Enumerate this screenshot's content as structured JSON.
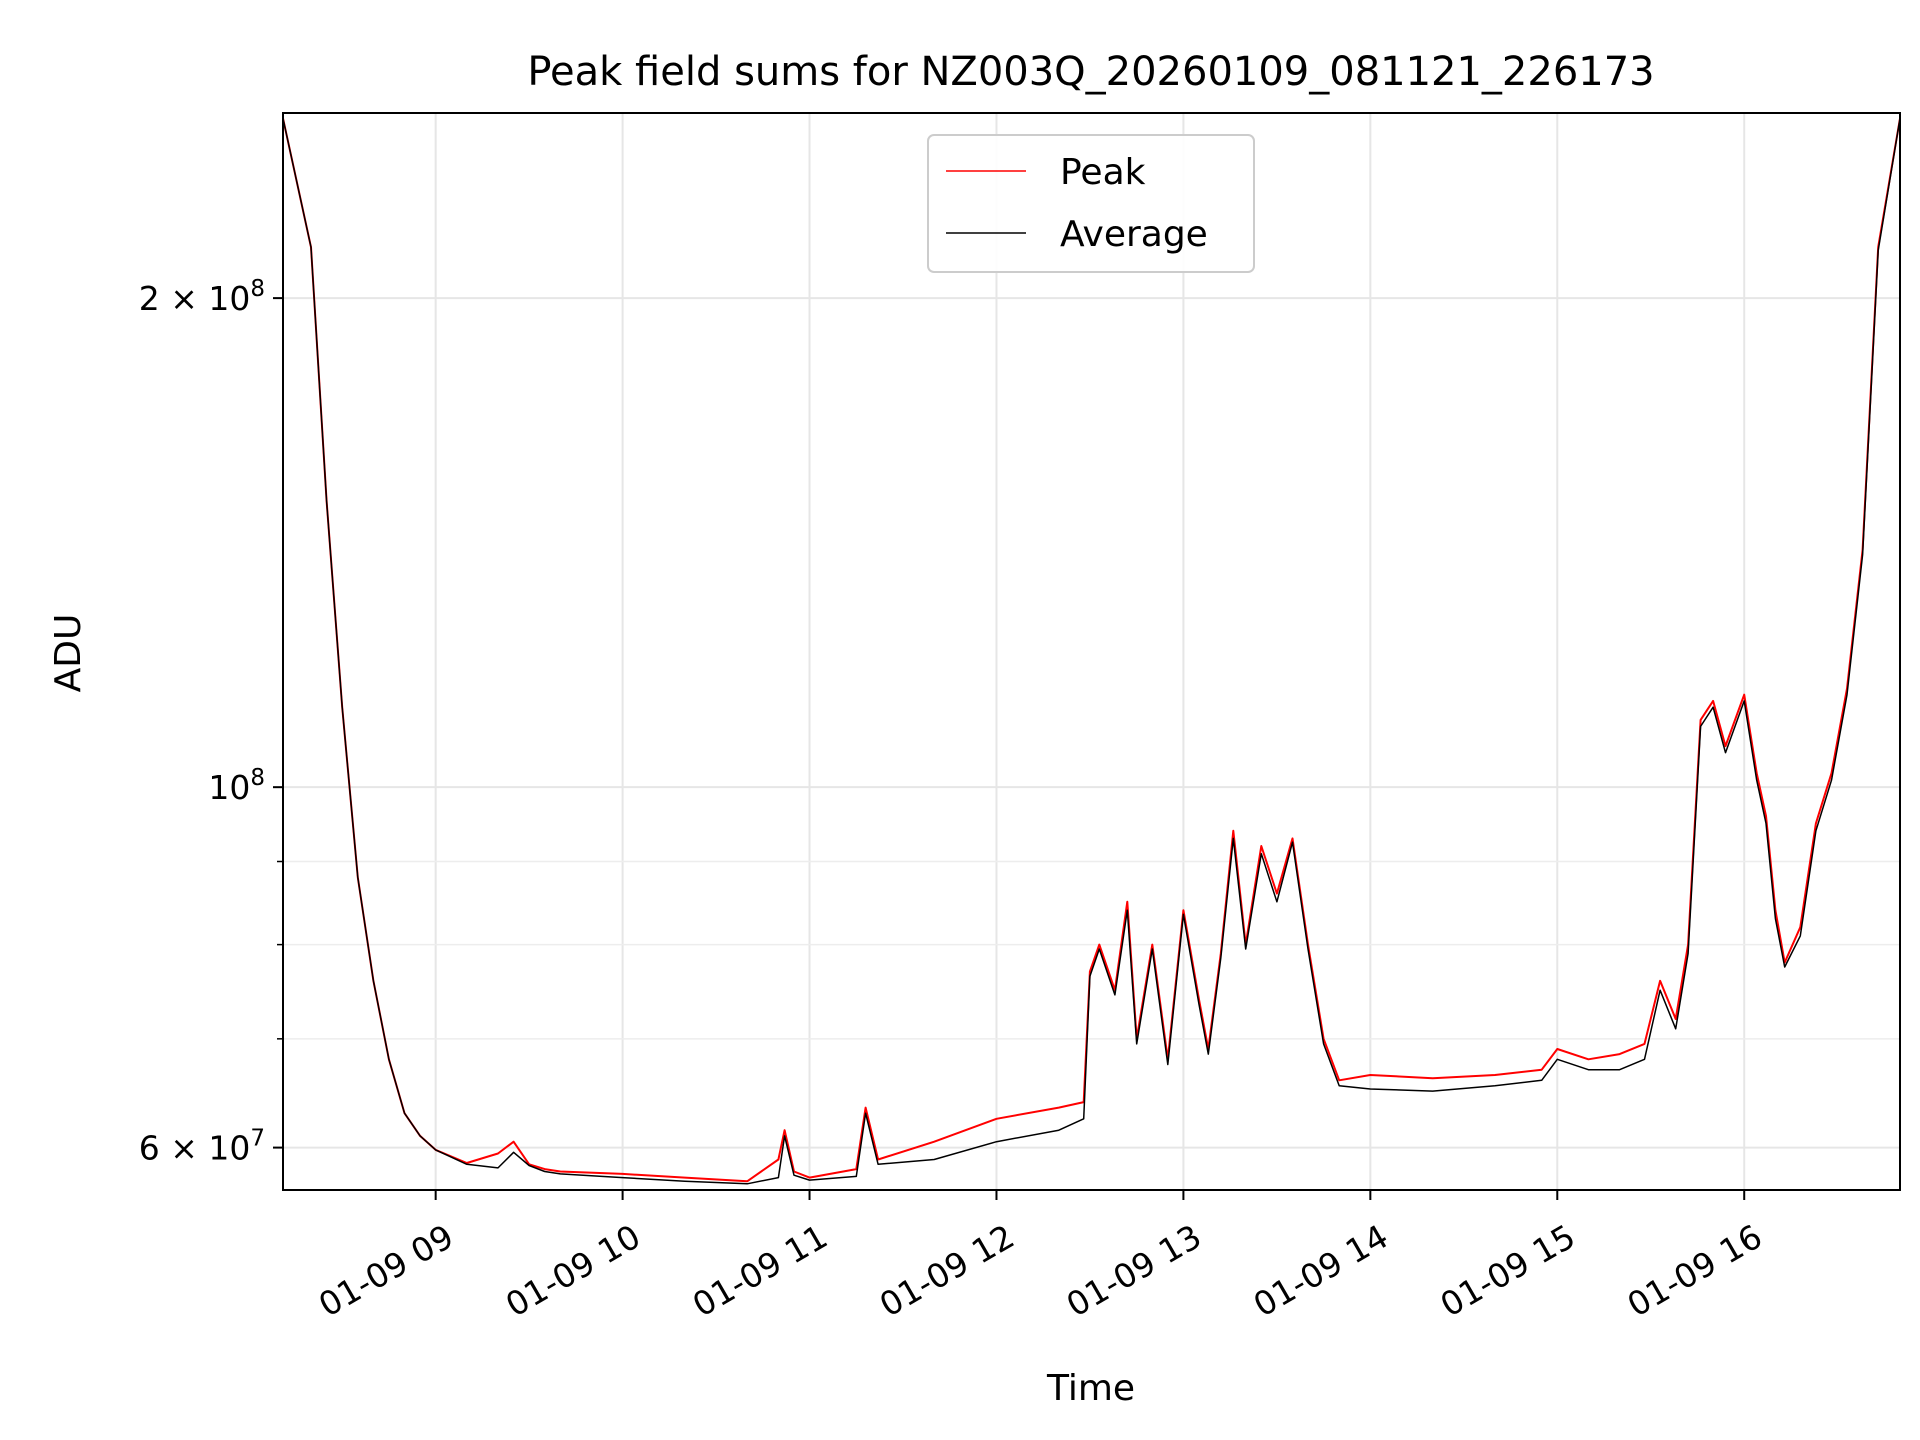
{
  "chart_data": {
    "type": "line",
    "title": "Peak field sums for NZ003Q_20260109_081121_226173",
    "xlabel": "Time",
    "ylabel": "ADU",
    "y_scale": "log",
    "xlim": [
      "2026-01-09 08:11",
      "2026-01-09 16:50"
    ],
    "ylim": [
      56500000,
      260000000
    ],
    "grid": true,
    "legend_position": "upper center",
    "x_ticks": [
      {
        "value": "2026-01-09 09:00",
        "label": "01-09 09"
      },
      {
        "value": "2026-01-09 10:00",
        "label": "01-09 10"
      },
      {
        "value": "2026-01-09 11:00",
        "label": "01-09 11"
      },
      {
        "value": "2026-01-09 12:00",
        "label": "01-09 12"
      },
      {
        "value": "2026-01-09 13:00",
        "label": "01-09 13"
      },
      {
        "value": "2026-01-09 14:00",
        "label": "01-09 14"
      },
      {
        "value": "2026-01-09 15:00",
        "label": "01-09 15"
      },
      {
        "value": "2026-01-09 16:00",
        "label": "01-09 16"
      }
    ],
    "y_major_ticks": [
      {
        "value": 60000000,
        "base": "6 × 10",
        "exp": "7"
      },
      {
        "value": 100000000,
        "base": "10",
        "exp": "8"
      },
      {
        "value": 200000000,
        "base": "2 × 10",
        "exp": "8"
      }
    ],
    "y_minor_ticks": [
      70000000,
      80000000,
      90000000
    ],
    "series": [
      {
        "name": "Peak",
        "color": "#ff0000",
        "x": [
          "2026-01-09 08:11",
          "2026-01-09 08:20",
          "2026-01-09 08:25",
          "2026-01-09 08:30",
          "2026-01-09 08:35",
          "2026-01-09 08:40",
          "2026-01-09 08:45",
          "2026-01-09 08:50",
          "2026-01-09 08:55",
          "2026-01-09 09:00",
          "2026-01-09 09:10",
          "2026-01-09 09:20",
          "2026-01-09 09:25",
          "2026-01-09 09:30",
          "2026-01-09 09:35",
          "2026-01-09 09:40",
          "2026-01-09 10:00",
          "2026-01-09 10:20",
          "2026-01-09 10:40",
          "2026-01-09 10:50",
          "2026-01-09 10:52",
          "2026-01-09 10:55",
          "2026-01-09 11:00",
          "2026-01-09 11:15",
          "2026-01-09 11:18",
          "2026-01-09 11:22",
          "2026-01-09 11:40",
          "2026-01-09 12:00",
          "2026-01-09 12:20",
          "2026-01-09 12:28",
          "2026-01-09 12:30",
          "2026-01-09 12:33",
          "2026-01-09 12:38",
          "2026-01-09 12:42",
          "2026-01-09 12:45",
          "2026-01-09 12:50",
          "2026-01-09 12:55",
          "2026-01-09 13:00",
          "2026-01-09 13:05",
          "2026-01-09 13:08",
          "2026-01-09 13:12",
          "2026-01-09 13:16",
          "2026-01-09 13:20",
          "2026-01-09 13:25",
          "2026-01-09 13:30",
          "2026-01-09 13:35",
          "2026-01-09 13:40",
          "2026-01-09 13:45",
          "2026-01-09 13:50",
          "2026-01-09 14:00",
          "2026-01-09 14:20",
          "2026-01-09 14:40",
          "2026-01-09 14:55",
          "2026-01-09 15:00",
          "2026-01-09 15:10",
          "2026-01-09 15:20",
          "2026-01-09 15:28",
          "2026-01-09 15:33",
          "2026-01-09 15:38",
          "2026-01-09 15:42",
          "2026-01-09 15:46",
          "2026-01-09 15:50",
          "2026-01-09 15:54",
          "2026-01-09 16:00",
          "2026-01-09 16:04",
          "2026-01-09 16:07",
          "2026-01-09 16:10",
          "2026-01-09 16:13",
          "2026-01-09 16:18",
          "2026-01-09 16:23",
          "2026-01-09 16:28",
          "2026-01-09 16:33",
          "2026-01-09 16:38",
          "2026-01-09 16:43",
          "2026-01-09 16:50"
        ],
        "y": [
          258000000,
          215000000,
          150000000,
          112000000,
          88000000,
          76000000,
          68000000,
          63000000,
          61000000,
          59800000,
          58700000,
          59500000,
          60500000,
          58600000,
          58200000,
          58000000,
          57800000,
          57500000,
          57200000,
          59000000,
          61500000,
          58000000,
          57500000,
          58200000,
          63500000,
          59000000,
          60500000,
          62500000,
          63500000,
          64000000,
          77000000,
          80000000,
          75000000,
          85000000,
          70000000,
          80000000,
          68000000,
          84000000,
          74000000,
          69000000,
          79000000,
          94000000,
          80000000,
          92000000,
          86000000,
          93000000,
          80000000,
          70000000,
          66000000,
          66500000,
          66200000,
          66500000,
          67000000,
          69000000,
          68000000,
          68500000,
          69500000,
          76000000,
          72000000,
          80000000,
          110000000,
          113000000,
          106000000,
          114000000,
          102000000,
          96000000,
          84000000,
          78000000,
          82000000,
          95000000,
          102000000,
          115000000,
          140000000,
          215000000,
          258000000
        ]
      },
      {
        "name": "Average",
        "color": "#000000",
        "x": [
          "2026-01-09 08:11",
          "2026-01-09 08:20",
          "2026-01-09 08:25",
          "2026-01-09 08:30",
          "2026-01-09 08:35",
          "2026-01-09 08:40",
          "2026-01-09 08:45",
          "2026-01-09 08:50",
          "2026-01-09 08:55",
          "2026-01-09 09:00",
          "2026-01-09 09:10",
          "2026-01-09 09:20",
          "2026-01-09 09:25",
          "2026-01-09 09:30",
          "2026-01-09 09:35",
          "2026-01-09 09:40",
          "2026-01-09 10:00",
          "2026-01-09 10:20",
          "2026-01-09 10:40",
          "2026-01-09 10:50",
          "2026-01-09 10:52",
          "2026-01-09 10:55",
          "2026-01-09 11:00",
          "2026-01-09 11:15",
          "2026-01-09 11:18",
          "2026-01-09 11:22",
          "2026-01-09 11:40",
          "2026-01-09 12:00",
          "2026-01-09 12:20",
          "2026-01-09 12:28",
          "2026-01-09 12:30",
          "2026-01-09 12:33",
          "2026-01-09 12:38",
          "2026-01-09 12:42",
          "2026-01-09 12:45",
          "2026-01-09 12:50",
          "2026-01-09 12:55",
          "2026-01-09 13:00",
          "2026-01-09 13:05",
          "2026-01-09 13:08",
          "2026-01-09 13:12",
          "2026-01-09 13:16",
          "2026-01-09 13:20",
          "2026-01-09 13:25",
          "2026-01-09 13:30",
          "2026-01-09 13:35",
          "2026-01-09 13:40",
          "2026-01-09 13:45",
          "2026-01-09 13:50",
          "2026-01-09 14:00",
          "2026-01-09 14:20",
          "2026-01-09 14:40",
          "2026-01-09 14:55",
          "2026-01-09 15:00",
          "2026-01-09 15:10",
          "2026-01-09 15:20",
          "2026-01-09 15:28",
          "2026-01-09 15:33",
          "2026-01-09 15:38",
          "2026-01-09 15:42",
          "2026-01-09 15:46",
          "2026-01-09 15:50",
          "2026-01-09 15:54",
          "2026-01-09 16:00",
          "2026-01-09 16:04",
          "2026-01-09 16:07",
          "2026-01-09 16:10",
          "2026-01-09 16:13",
          "2026-01-09 16:18",
          "2026-01-09 16:23",
          "2026-01-09 16:28",
          "2026-01-09 16:33",
          "2026-01-09 16:38",
          "2026-01-09 16:43",
          "2026-01-09 16:50"
        ],
        "y": [
          258000000,
          215000000,
          150000000,
          112000000,
          88000000,
          76000000,
          68000000,
          63000000,
          61000000,
          59800000,
          58600000,
          58300000,
          59600000,
          58500000,
          58000000,
          57800000,
          57500000,
          57200000,
          57000000,
          57500000,
          61000000,
          57700000,
          57300000,
          57600000,
          63000000,
          58600000,
          59000000,
          60500000,
          61500000,
          62500000,
          76500000,
          79500000,
          74500000,
          84000000,
          69500000,
          79500000,
          67500000,
          83500000,
          73500000,
          68500000,
          78500000,
          93000000,
          79500000,
          91000000,
          85000000,
          92500000,
          79500000,
          69500000,
          65500000,
          65200000,
          65000000,
          65500000,
          66000000,
          68000000,
          67000000,
          67000000,
          68000000,
          75000000,
          71000000,
          79000000,
          109000000,
          112000000,
          105000000,
          113000000,
          101000000,
          95000000,
          83000000,
          77500000,
          81000000,
          94000000,
          101000000,
          114000000,
          139000000,
          214000000,
          258000000
        ]
      }
    ]
  }
}
